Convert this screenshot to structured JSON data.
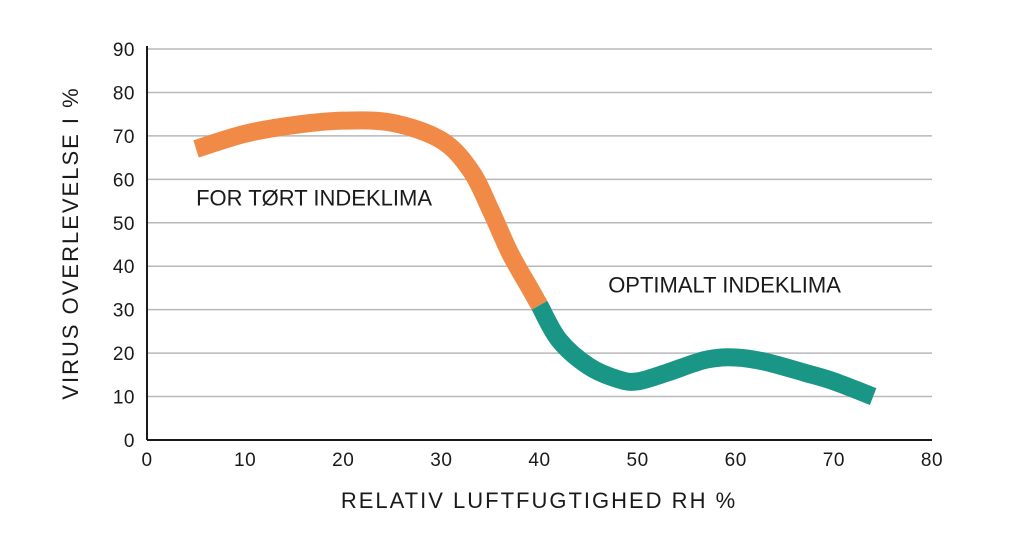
{
  "chart_data": {
    "type": "line",
    "xlabel": "RELATIV LUFTFUGTIGHED RH %",
    "ylabel": "VIRUS OVERLEVELSE I %",
    "xlim": [
      0,
      80
    ],
    "ylim": [
      0,
      90
    ],
    "x_ticks": [
      "0",
      "10",
      "20",
      "30",
      "40",
      "50",
      "60",
      "70",
      "80"
    ],
    "y_ticks": [
      "0",
      "10",
      "20",
      "30",
      "40",
      "50",
      "60",
      "70",
      "80",
      "90"
    ],
    "grid": "horizontal",
    "series": [
      {
        "color": "#f08a46",
        "x": [
          5,
          10,
          15,
          20,
          25,
          30,
          33,
          35,
          37,
          39,
          40
        ],
        "y": [
          67,
          70.5,
          72.5,
          73.5,
          73,
          69,
          62,
          53,
          43,
          35,
          31
        ]
      },
      {
        "color": "#1a9686",
        "x": [
          40,
          42,
          45,
          48,
          50,
          53,
          57,
          60,
          63,
          67,
          70,
          74
        ],
        "y": [
          31,
          23,
          17,
          14,
          13.5,
          15.5,
          18.5,
          19,
          18,
          15.5,
          13.5,
          10
        ]
      }
    ],
    "annotations": [
      {
        "text": "FOR TØRT INDEKLIMA",
        "x": 5,
        "y": 54
      },
      {
        "text": "OPTIMALT INDEKLIMA",
        "x": 47,
        "y": 34
      }
    ]
  }
}
